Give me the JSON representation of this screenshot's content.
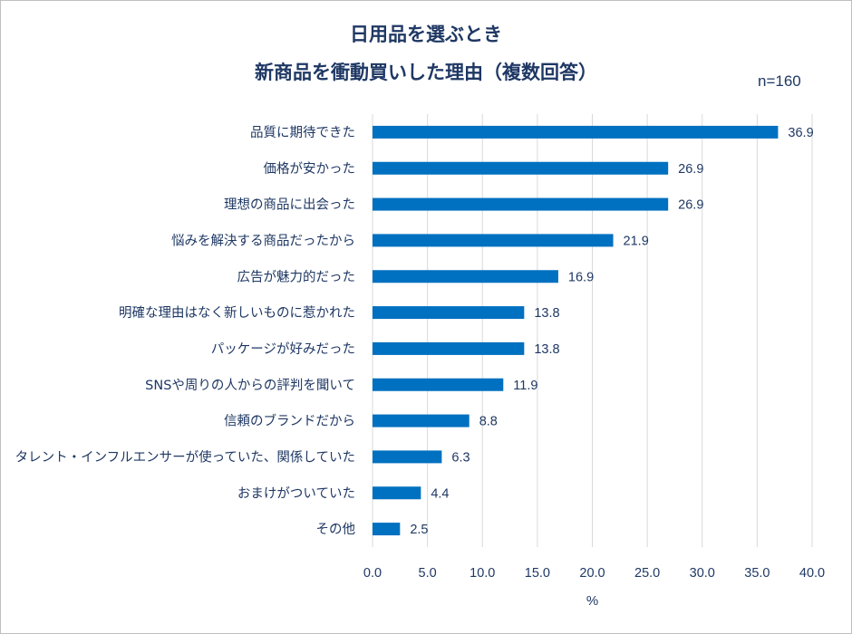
{
  "chart_data": {
    "type": "bar",
    "orientation": "horizontal",
    "title": "日用品を選ぶとき",
    "subtitle": "新商品を衝動買いした理由（複数回答）",
    "sample_size": "n=160",
    "xlabel": "%",
    "ylabel": "",
    "xlim": [
      0,
      40
    ],
    "x_ticks": [
      "0.0",
      "5.0",
      "10.0",
      "15.0",
      "20.0",
      "25.0",
      "30.0",
      "35.0",
      "40.0"
    ],
    "grid": "vertical",
    "legend": "none",
    "bar_color": "#0070c0",
    "categories": [
      "品質に期待できた",
      "価格が安かった",
      "理想の商品に出会った",
      "悩みを解決する商品だったから",
      "広告が魅力的だった",
      "明確な理由はなく新しいものに惹かれた",
      "パッケージが好みだった",
      "SNSや周りの人からの評判を聞いて",
      "信頼のブランドだから",
      "タレント・インフルエンサーが使っていた、関係していた",
      "おまけがついていた",
      "その他"
    ],
    "values": [
      36.9,
      26.9,
      26.9,
      21.9,
      16.9,
      13.8,
      13.8,
      11.9,
      8.8,
      6.3,
      4.4,
      2.5
    ],
    "value_labels": [
      "36.9",
      "26.9",
      "26.9",
      "21.9",
      "16.9",
      "13.8",
      "13.8",
      "11.9",
      "8.8",
      "6.3",
      "4.4",
      "2.5"
    ]
  }
}
